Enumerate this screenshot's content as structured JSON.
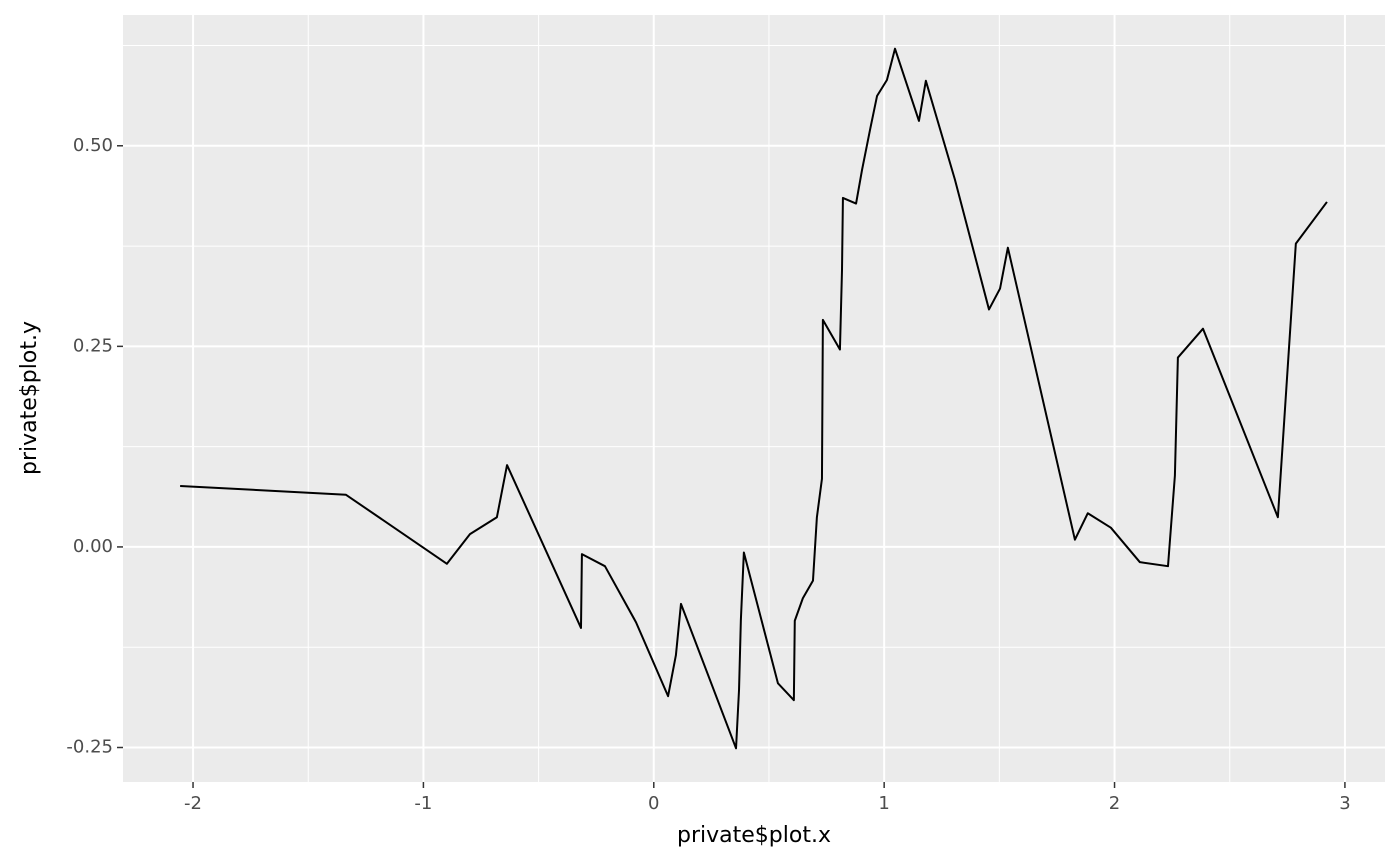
{
  "chart_data": {
    "type": "line",
    "x_label": "private$plot.x",
    "y_label": "private$plot.y",
    "x": [
      -2.056,
      -1.336,
      -0.898,
      -0.798,
      -0.681,
      -0.637,
      -0.316,
      -0.312,
      -0.212,
      -0.077,
      0.062,
      0.096,
      0.118,
      0.357,
      0.37,
      0.378,
      0.391,
      0.539,
      0.608,
      0.612,
      0.647,
      0.691,
      0.708,
      0.73,
      0.734,
      0.808,
      0.817,
      0.821,
      0.878,
      0.904,
      0.938,
      0.969,
      1.012,
      1.047,
      1.151,
      1.181,
      1.307,
      1.455,
      1.503,
      1.537,
      1.828,
      1.884,
      1.984,
      2.11,
      2.232,
      2.262,
      2.275,
      2.384,
      2.709,
      2.787,
      2.922
    ],
    "values": [
      0.076,
      0.065,
      -0.021,
      0.016,
      0.037,
      0.102,
      -0.101,
      -0.009,
      -0.024,
      -0.094,
      -0.186,
      -0.135,
      -0.071,
      -0.251,
      -0.178,
      -0.091,
      -0.007,
      -0.17,
      -0.191,
      -0.092,
      -0.064,
      -0.042,
      0.037,
      0.085,
      0.283,
      0.246,
      0.345,
      0.435,
      0.428,
      0.47,
      0.519,
      0.562,
      0.582,
      0.621,
      0.531,
      0.581,
      0.458,
      0.296,
      0.322,
      0.373,
      0.009,
      0.042,
      0.024,
      -0.019,
      -0.024,
      0.089,
      0.236,
      0.272,
      0.037,
      0.378,
      0.43
    ],
    "color": "#000000",
    "xlim": [
      -2.304,
      3.174
    ],
    "ylim": [
      -0.293,
      0.663
    ],
    "xticks": [
      -2,
      -1,
      0,
      1,
      2,
      3
    ],
    "yticks": [
      {
        "value": -0.25,
        "label": "-0.25"
      },
      {
        "value": 0,
        "label": "0.00"
      },
      {
        "value": 0.25,
        "label": "0.25"
      },
      {
        "value": 0.5,
        "label": "0.50"
      }
    ],
    "grid": true
  }
}
